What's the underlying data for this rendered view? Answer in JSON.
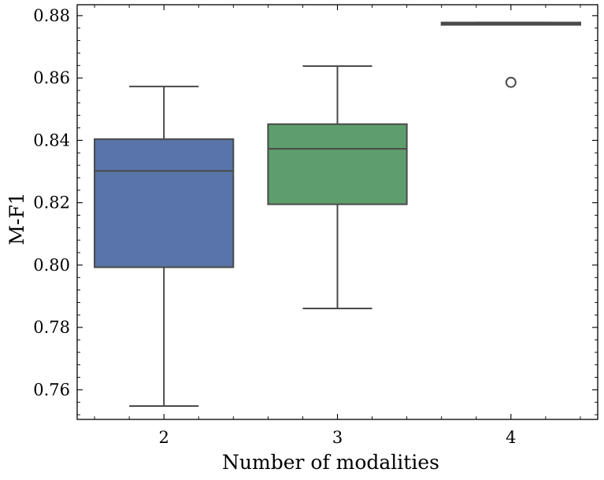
{
  "chart_data": {
    "type": "box",
    "xlabel": "Number of modalities",
    "ylabel": "M-F1",
    "ylim": [
      0.7505,
      0.8835
    ],
    "yticks": [
      0.76,
      0.78,
      0.8,
      0.82,
      0.84,
      0.86,
      0.88
    ],
    "ytick_labels": [
      "0.76",
      "0.78",
      "0.80",
      "0.82",
      "0.84",
      "0.86",
      "0.88"
    ],
    "categories": [
      "2",
      "3",
      "4"
    ],
    "boxes": [
      {
        "category": "2",
        "color": "#5874a8",
        "whisker_low": 0.7548,
        "q1": 0.7993,
        "median": 0.8302,
        "q3": 0.8404,
        "whisker_high": 0.8573,
        "outliers": []
      },
      {
        "category": "3",
        "color": "#5e9e6c",
        "whisker_low": 0.7861,
        "q1": 0.8195,
        "median": 0.8373,
        "q3": 0.8452,
        "whisker_high": 0.8638,
        "outliers": []
      },
      {
        "category": "4",
        "color": "#c0616a",
        "whisker_low": 0.8772,
        "q1": 0.8772,
        "median": 0.8775,
        "q3": 0.8778,
        "whisker_high": 0.8778,
        "outliers": [
          0.8586
        ]
      }
    ],
    "grid": false
  }
}
